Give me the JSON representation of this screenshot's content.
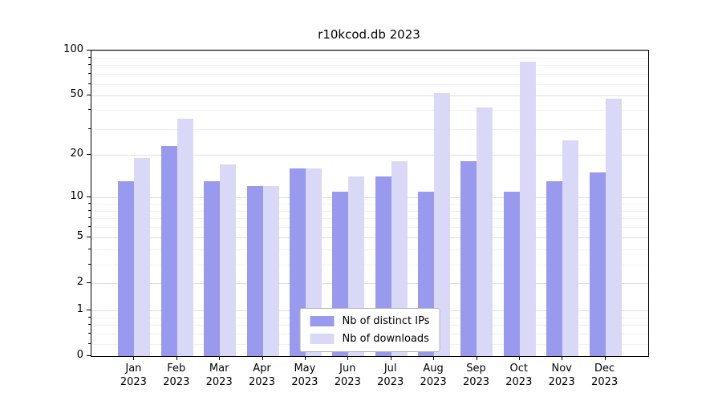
{
  "chart_data": {
    "type": "bar",
    "title": "r10kcod.db 2023",
    "categories": [
      "Jan",
      "Feb",
      "Mar",
      "Apr",
      "May",
      "Jun",
      "Jul",
      "Aug",
      "Sep",
      "Oct",
      "Nov",
      "Dec"
    ],
    "year_label": "2023",
    "series": [
      {
        "name": "Nb of distinct IPs",
        "color": "#9999ee",
        "values": [
          13,
          23,
          13,
          12,
          16,
          11,
          14,
          11,
          18,
          11,
          13,
          15
        ]
      },
      {
        "name": "Nb of downloads",
        "color": "#d9d9f7",
        "values": [
          19,
          35,
          17,
          12,
          16,
          14,
          18,
          52,
          42,
          84,
          25,
          48
        ]
      }
    ],
    "yscale": "log1p",
    "ylim": [
      0,
      100
    ],
    "yticks": [
      0,
      1,
      2,
      5,
      10,
      20,
      50,
      100
    ],
    "yticks_minor": [
      0.2,
      0.4,
      0.6,
      0.8,
      3,
      4,
      6,
      7,
      8,
      9,
      30,
      40,
      60,
      70,
      80,
      90
    ],
    "grid": "horizontal",
    "legend_position": "lower center",
    "axis_color": "#000000",
    "grid_color_major": "#e0e0e0",
    "grid_color_minor": "#f1f1f1"
  }
}
